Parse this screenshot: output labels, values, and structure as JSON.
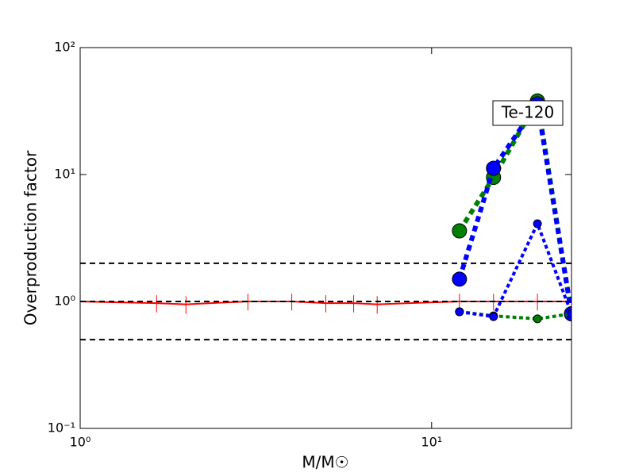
{
  "chart_data": {
    "type": "line",
    "log_x": true,
    "log_y": true,
    "xlabel": "M/M☉",
    "ylabel": "Overproduction factor",
    "xlim": [
      1,
      25
    ],
    "ylim": [
      0.1,
      100
    ],
    "xticks": [
      {
        "value": 1,
        "label": "10⁰"
      },
      {
        "value": 10,
        "label": "10¹"
      }
    ],
    "yticks": [
      {
        "value": 0.1,
        "label": "10⁻¹"
      },
      {
        "value": 1,
        "label": "10⁰"
      },
      {
        "value": 10,
        "label": "10¹"
      },
      {
        "value": 100,
        "label": "10²"
      }
    ],
    "hlines": [
      2,
      1,
      0.5
    ],
    "hline_color": "#000000",
    "annotation": "Te-120",
    "series": [
      {
        "color": "#ff0000",
        "line_width": 2,
        "dash": "solid",
        "marker_size": 0,
        "x": [
          1,
          1.65,
          2,
          3,
          4,
          5,
          6,
          7,
          12,
          15,
          20,
          25
        ],
        "values": [
          1,
          0.97,
          0.95,
          1,
          1,
          0.97,
          0.97,
          0.95,
          1,
          1,
          1,
          1
        ],
        "errors": [
          0.15,
          0.15,
          0.15,
          0.15,
          0.15,
          0.15,
          0.15,
          0.15,
          0.15,
          0.15,
          0.15,
          0.15
        ]
      },
      {
        "color": "#008000",
        "line_width": 6,
        "dash": "dotted",
        "marker_size": 9,
        "x": [
          12,
          15,
          20,
          25
        ],
        "values": [
          3.6,
          9.5,
          38,
          0.8
        ]
      },
      {
        "color": "#0000ff",
        "line_width": 6,
        "dash": "dotted",
        "marker_size": 9,
        "x": [
          12,
          15,
          20,
          25
        ],
        "values": [
          1.5,
          11.2,
          36,
          0.8
        ]
      },
      {
        "color": "#008000",
        "line_width": 4,
        "dash": "dotted",
        "marker_size": 5,
        "x": [
          12,
          15,
          20,
          25
        ],
        "values": [
          0.83,
          0.77,
          0.73,
          0.8
        ]
      },
      {
        "color": "#0000ff",
        "line_width": 4,
        "dash": "dotted",
        "marker_size": 5,
        "x": [
          12,
          15,
          20,
          25
        ],
        "values": [
          0.83,
          0.76,
          4.1,
          0.8
        ]
      }
    ]
  }
}
